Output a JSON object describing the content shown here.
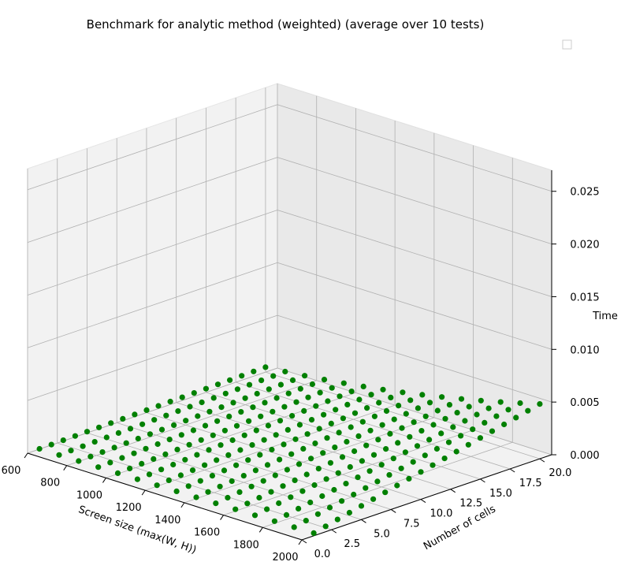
{
  "chart_data": {
    "type": "scatter3d",
    "title": "Benchmark for analytic method (weighted) (average over 10 tests)",
    "xlabel": "Screen size (max(W, H))",
    "ylabel": "Number of cells",
    "zlabel": "Time",
    "xlim": [
      600,
      2000
    ],
    "ylim": [
      0,
      21
    ],
    "zlim": [
      0,
      0.027
    ],
    "x_ticks": [
      "600",
      "800",
      "1000",
      "1200",
      "1400",
      "1600",
      "1800",
      "2000"
    ],
    "y_ticks": [
      "0.0",
      "2.5",
      "5.0",
      "7.5",
      "10.0",
      "12.5",
      "15.0",
      "17.5",
      "20.0"
    ],
    "z_ticks": [
      "0.000",
      "0.005",
      "0.010",
      "0.015",
      "0.020",
      "0.025"
    ],
    "grid": true,
    "legend": "top-right (empty)",
    "marker_color": "#008000",
    "series": [
      {
        "screen_sizes": [
          600,
          700,
          800,
          900,
          1000,
          1100,
          1200,
          1300,
          1400,
          1500,
          1600,
          1700,
          1800,
          1900,
          2000
        ],
        "cells": [
          1,
          2,
          3,
          4,
          5,
          6,
          7,
          8,
          9,
          10,
          11,
          12,
          13,
          14,
          15,
          16,
          17,
          18,
          19,
          20
        ],
        "time_per_pixel_cell": 6.5e-11
      }
    ]
  }
}
